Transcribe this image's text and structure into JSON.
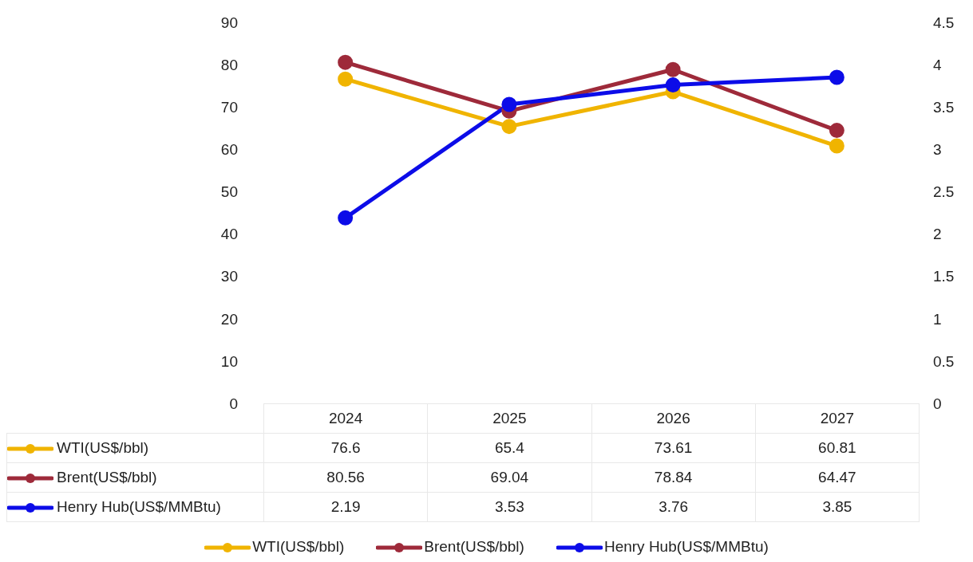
{
  "chart_data": {
    "type": "line",
    "categories": [
      "2024",
      "2025",
      "2026",
      "2027"
    ],
    "series": [
      {
        "name": "WTI(US$/bbl)",
        "color": "#f0b400",
        "values": [
          76.6,
          65.4,
          73.61,
          60.81
        ]
      },
      {
        "name": "Brent(US$/bbl)",
        "color": "#9e2a3a",
        "values": [
          80.56,
          69.04,
          78.84,
          64.47
        ]
      },
      {
        "name": "Henry Hub(US$/MMBtu)",
        "color": "#0c0ce8",
        "values": [
          2.19,
          3.53,
          3.76,
          3.85
        ],
        "axis": "y2"
      }
    ],
    "ylim": [
      0,
      90
    ],
    "yticks": [
      0,
      10,
      20,
      30,
      40,
      50,
      60,
      70,
      80,
      90
    ],
    "y2lim": [
      0,
      4.5
    ],
    "y2ticks": [
      0,
      0.5,
      1,
      1.5,
      2,
      2.5,
      3,
      3.5,
      4,
      4.5
    ],
    "data_labels": true,
    "legend": "bottom",
    "marker": "circle",
    "line_style": "solid",
    "grid": false
  }
}
